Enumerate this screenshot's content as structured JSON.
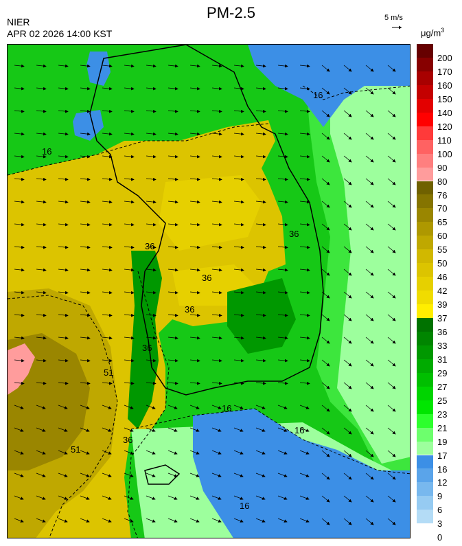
{
  "header": {
    "title": "PM-2.5",
    "agency": "NIER",
    "datetime": "APR 02 2026 14:00 KST",
    "wind_scale_label": "5 m/s",
    "unit_base": "μg/m",
    "unit_sup": "3"
  },
  "map": {
    "contour_labels": [
      "16",
      "36",
      "36",
      "36",
      "51",
      "51",
      "36",
      "16",
      "16",
      "16",
      "16",
      "36",
      "36"
    ]
  },
  "legend": {
    "labels": [
      "200",
      "170",
      "160",
      "150",
      "140",
      "120",
      "110",
      "100",
      "90",
      "80",
      "76",
      "70",
      "65",
      "60",
      "55",
      "50",
      "46",
      "42",
      "39",
      "37",
      "36",
      "33",
      "31",
      "29",
      "27",
      "25",
      "23",
      "21",
      "19",
      "17",
      "16",
      "12",
      "9",
      "6",
      "3",
      "0"
    ],
    "colors": [
      "#660000",
      "#870000",
      "#a80000",
      "#c40000",
      "#e30000",
      "#ff0000",
      "#ff3a3a",
      "#ff6262",
      "#ff7f7f",
      "#ff9c9c",
      "#6f6100",
      "#857400",
      "#9a8600",
      "#ae9800",
      "#bfa800",
      "#d1b800",
      "#dcc400",
      "#e6d000",
      "#f0dc00",
      "#ffee00",
      "#007200",
      "#008500",
      "#009800",
      "#00ab00",
      "#00bf00",
      "#00d400",
      "#00e600",
      "#2dff2d",
      "#6dff6d",
      "#9dff9d",
      "#3c8fe6",
      "#5aa4ea",
      "#78b8ee",
      "#96cbf2",
      "#b4dcf6"
    ]
  }
}
